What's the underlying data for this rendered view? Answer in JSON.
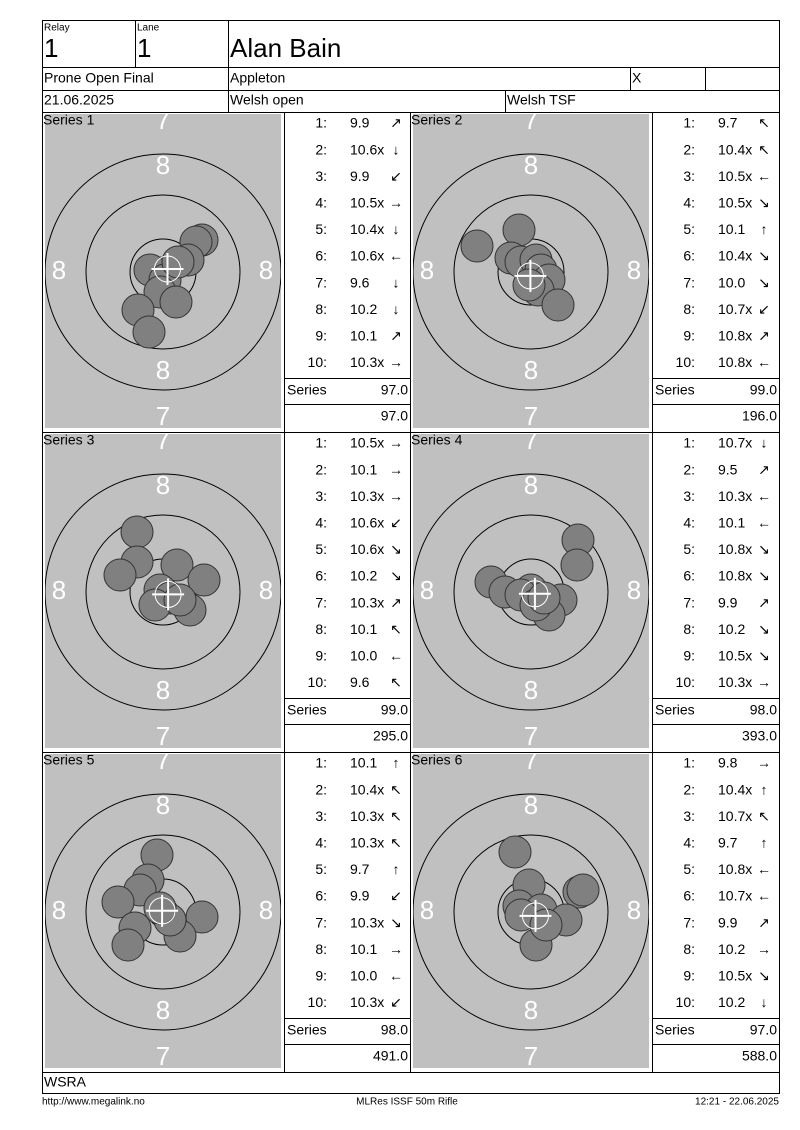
{
  "header": {
    "relay_label": "Relay",
    "relay": "1",
    "lane_label": "Lane",
    "lane": "1",
    "name": "Alan Bain",
    "event": "Prone Open Final",
    "club": "Appleton",
    "flag": "X",
    "date": "21.06.2025",
    "competition": "Welsh open",
    "organizer": "Welsh TSF"
  },
  "ring_labels": {
    "seven": "7",
    "eight": "8"
  },
  "series_label": "Series",
  "series": [
    {
      "title": "Series 1",
      "shots": [
        {
          "n": "1:",
          "score": "9.9",
          "dir": "↗"
        },
        {
          "n": "2:",
          "score": "10.6x",
          "dir": "↓"
        },
        {
          "n": "3:",
          "score": "9.9",
          "dir": "↙"
        },
        {
          "n": "4:",
          "score": "10.5x",
          "dir": "→"
        },
        {
          "n": "5:",
          "score": "10.4x",
          "dir": "↓"
        },
        {
          "n": "6:",
          "score": "10.6x",
          "dir": "←"
        },
        {
          "n": "7:",
          "score": "9.6",
          "dir": "↓"
        },
        {
          "n": "8:",
          "score": "10.2",
          "dir": "↓"
        },
        {
          "n": "9:",
          "score": "10.1",
          "dir": "↗"
        },
        {
          "n": "10:",
          "score": "10.3x",
          "dir": "→"
        }
      ],
      "total": "97.0",
      "cumulative": "97.0"
    },
    {
      "title": "Series 2",
      "shots": [
        {
          "n": "1:",
          "score": "9.7",
          "dir": "↖"
        },
        {
          "n": "2:",
          "score": "10.4x",
          "dir": "↖"
        },
        {
          "n": "3:",
          "score": "10.5x",
          "dir": "←"
        },
        {
          "n": "4:",
          "score": "10.5x",
          "dir": "↘"
        },
        {
          "n": "5:",
          "score": "10.1",
          "dir": "↑"
        },
        {
          "n": "6:",
          "score": "10.4x",
          "dir": "↘"
        },
        {
          "n": "7:",
          "score": "10.0",
          "dir": "↘"
        },
        {
          "n": "8:",
          "score": "10.7x",
          "dir": "↙"
        },
        {
          "n": "9:",
          "score": "10.8x",
          "dir": "↗"
        },
        {
          "n": "10:",
          "score": "10.8x",
          "dir": "←"
        }
      ],
      "total": "99.0",
      "cumulative": "196.0"
    },
    {
      "title": "Series 3",
      "shots": [
        {
          "n": "1:",
          "score": "10.5x",
          "dir": "→"
        },
        {
          "n": "2:",
          "score": "10.1",
          "dir": "→"
        },
        {
          "n": "3:",
          "score": "10.3x",
          "dir": "→"
        },
        {
          "n": "4:",
          "score": "10.6x",
          "dir": "↙"
        },
        {
          "n": "5:",
          "score": "10.6x",
          "dir": "↘"
        },
        {
          "n": "6:",
          "score": "10.2",
          "dir": "↘"
        },
        {
          "n": "7:",
          "score": "10.3x",
          "dir": "↗"
        },
        {
          "n": "8:",
          "score": "10.1",
          "dir": "↖"
        },
        {
          "n": "9:",
          "score": "10.0",
          "dir": "←"
        },
        {
          "n": "10:",
          "score": "9.6",
          "dir": "↖"
        }
      ],
      "total": "99.0",
      "cumulative": "295.0"
    },
    {
      "title": "Series 4",
      "shots": [
        {
          "n": "1:",
          "score": "10.7x",
          "dir": "↓"
        },
        {
          "n": "2:",
          "score": "9.5",
          "dir": "↗"
        },
        {
          "n": "3:",
          "score": "10.3x",
          "dir": "←"
        },
        {
          "n": "4:",
          "score": "10.1",
          "dir": "←"
        },
        {
          "n": "5:",
          "score": "10.8x",
          "dir": "↘"
        },
        {
          "n": "6:",
          "score": "10.8x",
          "dir": "↘"
        },
        {
          "n": "7:",
          "score": "9.9",
          "dir": "↗"
        },
        {
          "n": "8:",
          "score": "10.2",
          "dir": "↘"
        },
        {
          "n": "9:",
          "score": "10.5x",
          "dir": "↘"
        },
        {
          "n": "10:",
          "score": "10.3x",
          "dir": "→"
        }
      ],
      "total": "98.0",
      "cumulative": "393.0"
    },
    {
      "title": "Series 5",
      "shots": [
        {
          "n": "1:",
          "score": "10.1",
          "dir": "↑"
        },
        {
          "n": "2:",
          "score": "10.4x",
          "dir": "↖"
        },
        {
          "n": "3:",
          "score": "10.3x",
          "dir": "↖"
        },
        {
          "n": "4:",
          "score": "10.3x",
          "dir": "↖"
        },
        {
          "n": "5:",
          "score": "9.7",
          "dir": "↑"
        },
        {
          "n": "6:",
          "score": "9.9",
          "dir": "↙"
        },
        {
          "n": "7:",
          "score": "10.3x",
          "dir": "↘"
        },
        {
          "n": "8:",
          "score": "10.1",
          "dir": "→"
        },
        {
          "n": "9:",
          "score": "10.0",
          "dir": "←"
        },
        {
          "n": "10:",
          "score": "10.3x",
          "dir": "↙"
        }
      ],
      "total": "98.0",
      "cumulative": "491.0"
    },
    {
      "title": "Series 6",
      "shots": [
        {
          "n": "1:",
          "score": "9.8",
          "dir": "→"
        },
        {
          "n": "2:",
          "score": "10.4x",
          "dir": "↑"
        },
        {
          "n": "3:",
          "score": "10.7x",
          "dir": "↖"
        },
        {
          "n": "4:",
          "score": "9.7",
          "dir": "↑"
        },
        {
          "n": "5:",
          "score": "10.8x",
          "dir": "←"
        },
        {
          "n": "6:",
          "score": "10.7x",
          "dir": "←"
        },
        {
          "n": "7:",
          "score": "9.9",
          "dir": "↗"
        },
        {
          "n": "8:",
          "score": "10.2",
          "dir": "→"
        },
        {
          "n": "9:",
          "score": "10.5x",
          "dir": "↘"
        },
        {
          "n": "10:",
          "score": "10.2",
          "dir": "↓"
        }
      ],
      "total": "97.0",
      "cumulative": "588.0"
    }
  ],
  "footer": {
    "club": "WSRA",
    "url": "http://www.megalink.no",
    "software": "MLRes ISSF 50m Rifle",
    "timestamp": "12:21 - 22.06.2025"
  }
}
